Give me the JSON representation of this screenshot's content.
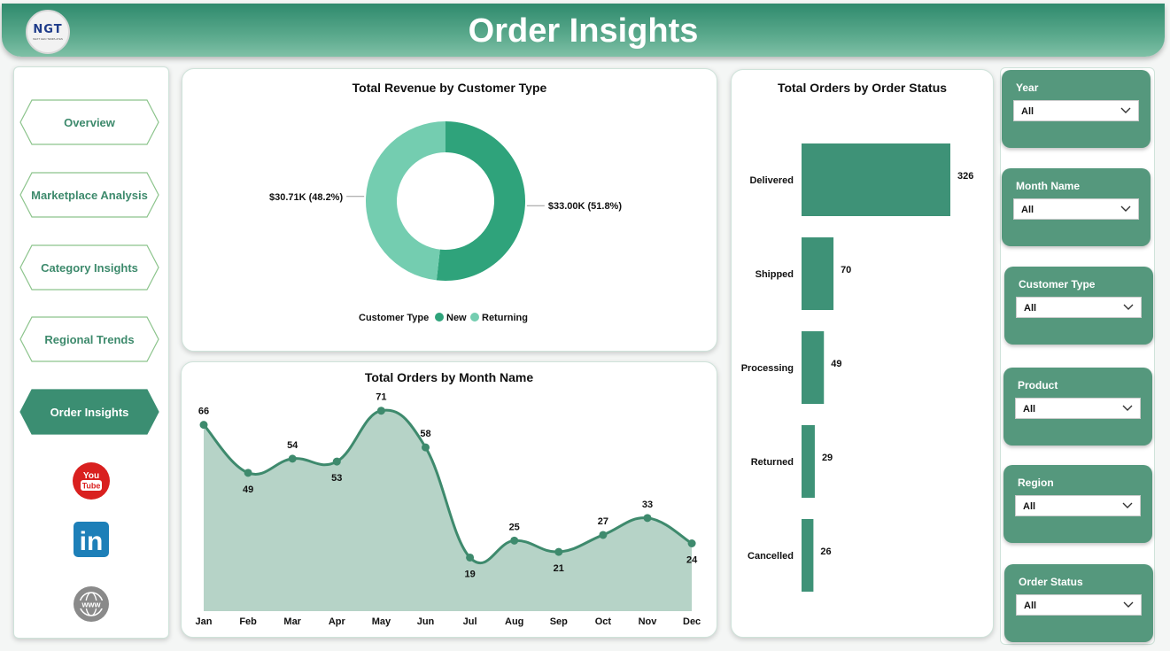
{
  "header": {
    "title": "Order Insights",
    "logo_text": "NGT",
    "logo_subtext": "NEXT GEN TEMPLATES"
  },
  "nav": {
    "items": [
      {
        "label": "Overview",
        "active": false
      },
      {
        "label": "Marketplace Analysis",
        "active": false
      },
      {
        "label": "Category Insights",
        "active": false
      },
      {
        "label": "Regional Trends",
        "active": false
      },
      {
        "label": "Order Insights",
        "active": true
      }
    ],
    "social": {
      "youtube_top": "You",
      "youtube_bottom": "Tube",
      "linkedin": "in",
      "web": "www"
    }
  },
  "colors": {
    "primary": "#3e9277",
    "light": "#74cdb0",
    "accent": "#2fa37b",
    "area": "#b6d3c7",
    "slicer": "#55987d"
  },
  "donut_chart": {
    "chart_data": {
      "type": "pie",
      "title": "Total Revenue by Customer Type",
      "legend_title": "Customer Type",
      "legend_position": "bottom",
      "slices": [
        {
          "name": "New",
          "value": 33.0,
          "label": "$33.00K (51.8%)",
          "color": "#2fa37b"
        },
        {
          "name": "Returning",
          "value": 30.71,
          "label": "$30.71K (48.2%)",
          "color": "#74cdb0"
        }
      ]
    }
  },
  "bar_chart": {
    "chart_data": {
      "type": "bar",
      "orientation": "horizontal",
      "title": "Total Orders by Order Status",
      "categories": [
        "Delivered",
        "Shipped",
        "Processing",
        "Returned",
        "Cancelled"
      ],
      "values": [
        326,
        70,
        49,
        29,
        26
      ],
      "color": "#3e9277"
    }
  },
  "line_chart": {
    "chart_data": {
      "type": "area",
      "title": "Total Orders by Month Name",
      "categories": [
        "Jan",
        "Feb",
        "Mar",
        "Apr",
        "May",
        "Jun",
        "Jul",
        "Aug",
        "Sep",
        "Oct",
        "Nov",
        "Dec"
      ],
      "values": [
        66,
        49,
        54,
        53,
        71,
        58,
        19,
        25,
        21,
        27,
        33,
        24
      ],
      "label_position": [
        "above",
        "below",
        "above",
        "below",
        "above",
        "above",
        "below",
        "above",
        "below",
        "above",
        "above",
        "below"
      ],
      "ylim": [
        0,
        80
      ],
      "line_color": "#3e8a6d",
      "fill_color": "#b6d3c7"
    }
  },
  "slicers": [
    {
      "label": "Year",
      "value": "All"
    },
    {
      "label": "Month Name",
      "value": "All"
    },
    {
      "label": "Customer Type",
      "value": "All"
    },
    {
      "label": "Product",
      "value": "All"
    },
    {
      "label": "Region",
      "value": "All"
    },
    {
      "label": "Order Status",
      "value": "All"
    }
  ]
}
